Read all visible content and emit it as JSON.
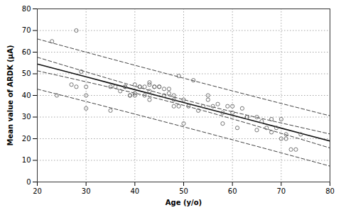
{
  "chart_data": {
    "type": "scatter",
    "xlabel": "Age (y/o)",
    "ylabel": "Mean value of ARDK (μA)",
    "xlim": [
      20,
      80
    ],
    "ylim": [
      0,
      80
    ],
    "xticks": [
      20,
      30,
      40,
      50,
      60,
      70,
      80
    ],
    "yticks": [
      0,
      10,
      20,
      30,
      40,
      50,
      60,
      70,
      80
    ],
    "grid": true,
    "series": [
      {
        "type": "scatter",
        "color": "#666666",
        "marker": "circle",
        "x": [
          23,
          24,
          27,
          28,
          28,
          29,
          30,
          30,
          30,
          35,
          35,
          36,
          37,
          38,
          38,
          39,
          39,
          40,
          40,
          40,
          41,
          41,
          42,
          42,
          43,
          43,
          43,
          43,
          44,
          44,
          45,
          45,
          46,
          46,
          47,
          47,
          48,
          48,
          48,
          49,
          49,
          50,
          50,
          51,
          52,
          53,
          54,
          55,
          55,
          56,
          57,
          58,
          58,
          59,
          60,
          60,
          61,
          62,
          63,
          63,
          65,
          65,
          66,
          67,
          68,
          68,
          69,
          70,
          70,
          71,
          71,
          72,
          73,
          74
        ],
        "values": [
          65,
          40,
          45,
          44,
          70,
          51,
          44,
          34,
          40,
          44,
          33,
          44,
          42,
          44,
          44,
          40,
          40,
          40,
          41,
          45,
          44,
          44,
          44,
          40,
          42,
          45,
          46,
          38,
          44,
          44,
          44,
          44,
          43,
          40,
          41,
          43,
          40,
          38,
          35,
          35,
          49,
          27,
          38,
          35,
          47,
          33,
          35,
          38,
          40,
          35,
          36,
          32,
          27,
          35,
          32,
          35,
          25,
          34,
          30,
          30,
          24,
          30,
          28,
          25,
          29,
          23,
          25,
          20,
          29,
          22,
          20,
          15,
          15,
          22
        ]
      },
      {
        "type": "line",
        "color": "#111111",
        "line_style": "solid",
        "x": [
          20,
          25,
          30,
          35,
          40,
          45,
          50,
          55,
          60,
          65,
          70,
          75,
          80
        ],
        "values": [
          54.51,
          51.55,
          48.58,
          45.62,
          42.66,
          39.69,
          36.73,
          33.77,
          30.8,
          27.84,
          24.87,
          21.91,
          18.95
        ]
      },
      {
        "type": "line",
        "color": "#444444",
        "line_style": "dashed",
        "x": [
          20,
          25,
          30,
          35,
          40,
          45,
          50,
          55,
          60,
          65,
          70,
          75,
          80
        ],
        "values": [
          57.64,
          54.24,
          50.87,
          47.53,
          44.24,
          41.06,
          38.03,
          35.17,
          32.46,
          29.83,
          27.26,
          24.71,
          22.18
        ]
      },
      {
        "type": "line",
        "color": "#444444",
        "line_style": "dashed",
        "x": [
          20,
          25,
          30,
          35,
          40,
          45,
          50,
          55,
          60,
          65,
          70,
          75,
          80
        ],
        "values": [
          51.38,
          48.85,
          46.3,
          43.71,
          41.07,
          38.33,
          35.43,
          32.36,
          29.15,
          25.85,
          22.49,
          19.11,
          15.71
        ]
      },
      {
        "type": "line",
        "color": "#444444",
        "line_style": "dashed",
        "x": [
          20,
          25,
          30,
          35,
          40,
          45,
          50,
          55,
          60,
          65,
          70,
          75,
          80
        ],
        "values": [
          66.11,
          63.04,
          59.98,
          56.95,
          53.94,
          50.94,
          47.97,
          45.02,
          42.09,
          39.18,
          36.29,
          33.43,
          30.58
        ]
      },
      {
        "type": "line",
        "color": "#444444",
        "line_style": "dashed",
        "x": [
          20,
          25,
          30,
          35,
          40,
          45,
          50,
          55,
          60,
          65,
          70,
          75,
          80
        ],
        "values": [
          42.91,
          40.06,
          37.18,
          34.29,
          31.38,
          28.44,
          25.48,
          22.51,
          19.51,
          16.49,
          13.46,
          10.4,
          7.32
        ]
      }
    ]
  }
}
